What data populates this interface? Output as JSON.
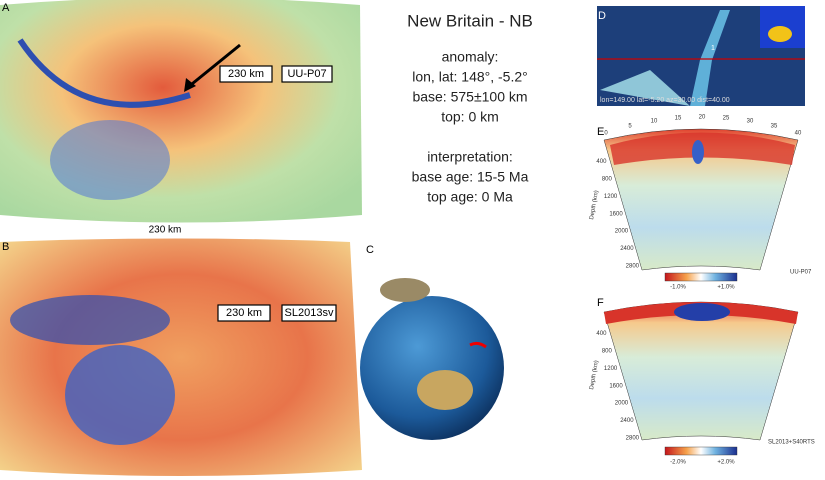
{
  "panels": {
    "a": {
      "letter": "A",
      "depth_label": "230 km",
      "model": "UU-P07",
      "caption": "230 km"
    },
    "b": {
      "letter": "B",
      "depth_label": "230 km",
      "model": "SL2013sv"
    },
    "c": {
      "letter": "C"
    },
    "d": {
      "letter": "D",
      "info": "lon=149.00 lat=-5.20 az=30.00 dist=40.00",
      "marker": "1"
    },
    "e": {
      "letter": "E",
      "distance_ticks": [
        "0",
        "5",
        "10",
        "15",
        "20",
        "25",
        "30",
        "35",
        "40"
      ],
      "depth_ticks": [
        "400",
        "800",
        "1200",
        "1600",
        "2000",
        "2400",
        "2800"
      ],
      "depth_axis": "Depth (km)",
      "scale_min": "-1.0%",
      "scale_max": "+1.0%",
      "model": "UU-P07"
    },
    "f": {
      "letter": "F",
      "depth_ticks": [
        "400",
        "800",
        "1200",
        "1600",
        "2000",
        "2400",
        "2800"
      ],
      "depth_axis": "Depth (km)",
      "scale_min": "-2.0%",
      "scale_max": "+2.0%",
      "model": "SL2013+S40RTS"
    }
  },
  "info": {
    "title": "New Britain - NB",
    "anomaly_heading": "anomaly:",
    "location": "lon, lat: 148°, -5.2°",
    "base": "base: 575±100 km",
    "top": "top: 0 km",
    "interpretation_heading": "interpretation:",
    "base_age": "base age: 15-5 Ma",
    "top_age": "top age: 0 Ma"
  }
}
